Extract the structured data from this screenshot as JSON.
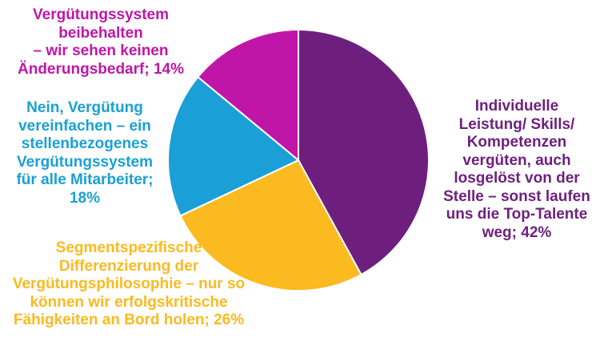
{
  "chart_data": {
    "type": "pie",
    "start_angle_deg": 0,
    "direction": "clockwise",
    "slices": [
      {
        "label": "Individuelle\nLeistung/ Skills/\nKompetenzen\nvergüten, auch\nlosgelöst von der\nStelle – sonst laufen\nuns die Top-Talente\nweg; 42%",
        "value": 42,
        "color": "#6E1F7E"
      },
      {
        "label": "Segmentspezifische\nDifferenzierung der\nVergütungsphilosophie – nur so\nkönnen wir erfolgskritische\nFähigkeiten an Bord holen; 26%",
        "value": 26,
        "color": "#FBBA20"
      },
      {
        "label": "Nein, Vergütung\nvereinfachen – ein\nstellenbezogenes\nVergütungssystem\nfür alle Mitarbeiter;\n18%",
        "value": 18,
        "color": "#1AA0D6"
      },
      {
        "label": "Vergütungssystem beibehalten\n– wir sehen keinen\nÄnderungsbedarf; 14%",
        "value": 14,
        "color": "#C016A8"
      }
    ]
  }
}
